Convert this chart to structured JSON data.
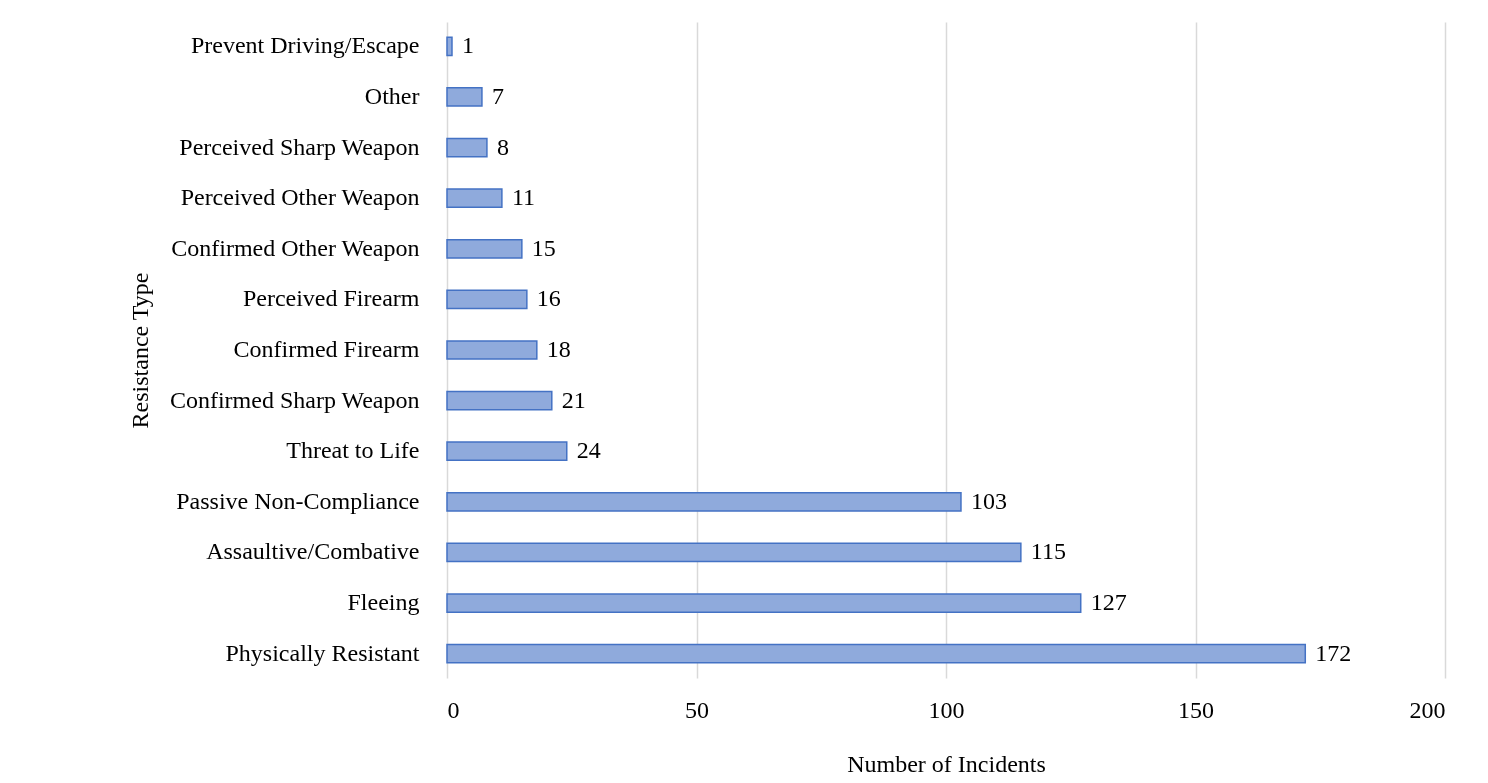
{
  "chart_data": {
    "type": "bar",
    "orientation": "horizontal",
    "xlabel": "Number of Incidents",
    "ylabel": "Resistance Type",
    "categories": [
      "Prevent Driving/Escape",
      "Other",
      "Perceived Sharp Weapon",
      "Perceived Other Weapon",
      "Confirmed Other Weapon",
      "Perceived Firearm",
      "Confirmed Firearm",
      "Confirmed Sharp Weapon",
      "Threat to Life",
      "Passive Non-Compliance",
      "Assaultive/Combative",
      "Fleeing",
      "Physically Resistant"
    ],
    "values": [
      1,
      7,
      8,
      11,
      15,
      16,
      18,
      21,
      24,
      103,
      115,
      127,
      172
    ],
    "color": "#8faadc",
    "xlim": [
      0,
      200
    ],
    "xticks": [
      0,
      50,
      100,
      150,
      200
    ],
    "grid": "x",
    "data_labels": true
  }
}
